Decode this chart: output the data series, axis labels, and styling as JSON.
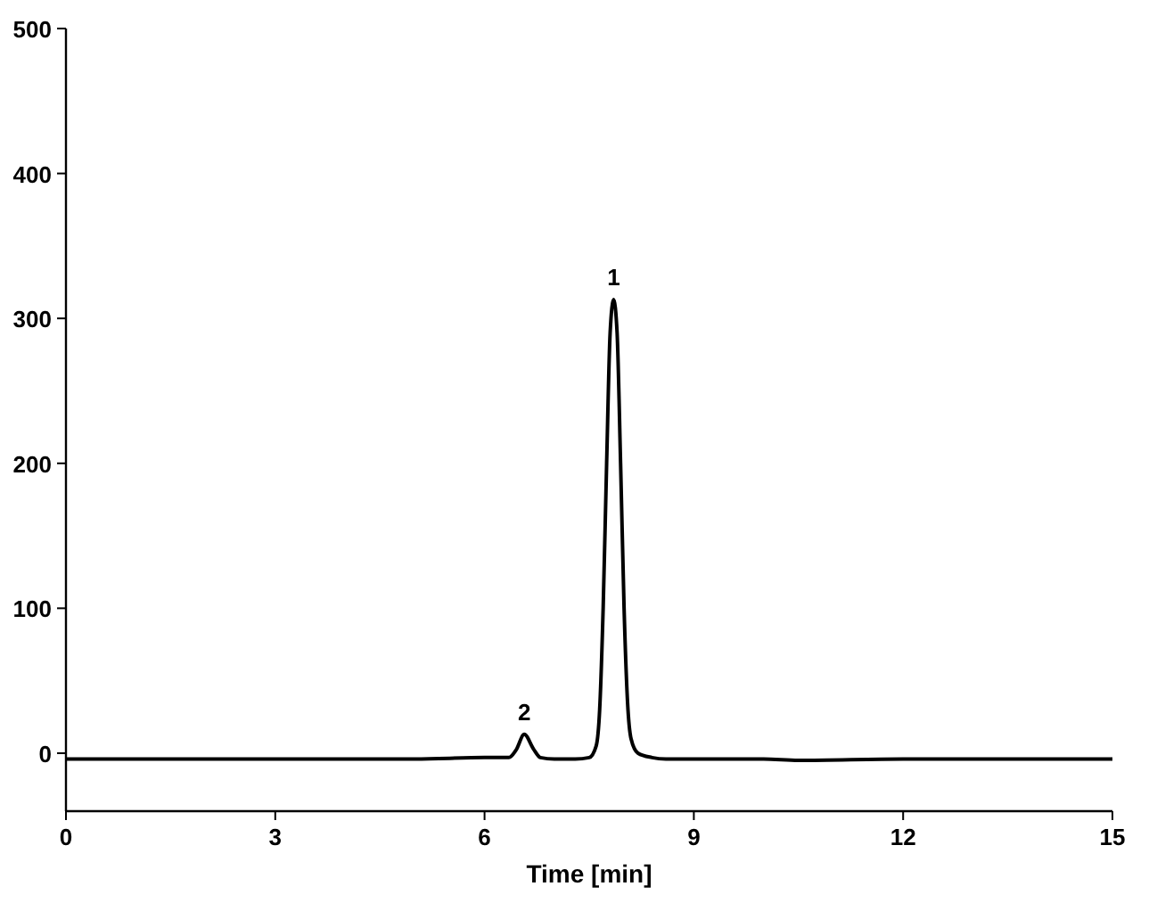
{
  "chart_data": {
    "type": "line",
    "xlabel": "Time [min]",
    "x": [
      0,
      5,
      6,
      6.2,
      6.35,
      6.45,
      6.57,
      6.7,
      6.8,
      7.0,
      7.3,
      7.5,
      7.6,
      7.65,
      7.7,
      7.75,
      7.8,
      7.85,
      7.9,
      7.95,
      8.0,
      8.05,
      8.1,
      8.2,
      8.4,
      8.6,
      10,
      10.5,
      12,
      15
    ],
    "series": [
      {
        "color": "#000000",
        "values": [
          -4,
          -4,
          -3,
          -3,
          -3,
          2,
          13,
          3,
          -3,
          -4,
          -4,
          -3,
          5,
          30,
          100,
          200,
          290,
          313,
          290,
          200,
          100,
          35,
          10,
          0,
          -3,
          -4,
          -4,
          -5,
          -4,
          -4
        ]
      }
    ],
    "xlim": [
      0,
      15
    ],
    "xticks": [
      0,
      3,
      6,
      9,
      12,
      15
    ],
    "ylim": [
      -40,
      500
    ],
    "yticks": [
      0,
      100,
      200,
      300,
      400,
      500
    ],
    "grid": false,
    "marker": "none",
    "line_style": "solid",
    "annotations": [
      {
        "text": "1",
        "x": 7.85,
        "y": 313
      },
      {
        "text": "2",
        "x": 6.57,
        "y": 13
      }
    ]
  }
}
